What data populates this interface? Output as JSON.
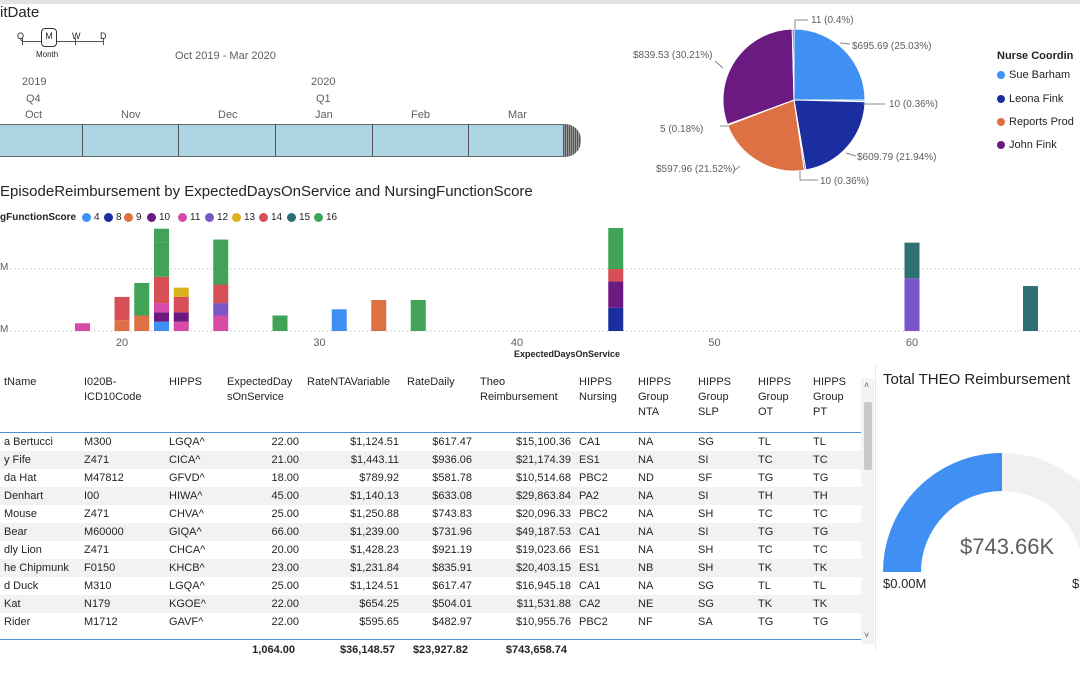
{
  "slicer": {
    "title": "itDate",
    "granularity": [
      "Q",
      "M",
      "W",
      "D"
    ],
    "granularity_selected": "M",
    "granularity_caption": "Month",
    "range_text": "Oct 2019 - Mar 2020",
    "year_2019": "2019",
    "quarter_2019": "Q4",
    "year_2020": "2020",
    "quarter_2020": "Q1",
    "months": [
      "Oct",
      "Nov",
      "Dec",
      "Jan",
      "Feb",
      "Mar"
    ]
  },
  "pie": {
    "legend_title": "Nurse Coordin",
    "legend": [
      {
        "name": "Sue Barham",
        "color": "#3f90f2"
      },
      {
        "name": "Leona Fink",
        "color": "#1a2ea0"
      },
      {
        "name": "Reports Prod",
        "color": "#dd7143"
      },
      {
        "name": "John Fink",
        "color": "#6a1a80"
      }
    ],
    "labels": {
      "l1": "11 (0.4%)",
      "l2": "$695.69 (25.03%)",
      "l3": "10 (0.36%)",
      "l4": "$609.79 (21.94%)",
      "l5": "10 (0.36%)",
      "l6": "$597.96 (21.52%)",
      "l7": "5 (0.18%)",
      "l8": "$839.53 (30.21%)"
    }
  },
  "bar_chart": {
    "title": "EpisodeReimbursement by ExpectedDaysOnService and NursingFunctionScore",
    "legend_title": "gFunctionScore",
    "legend": [
      {
        "name": "4",
        "color": "#3f90f2"
      },
      {
        "name": "8",
        "color": "#1a2ea0"
      },
      {
        "name": "9",
        "color": "#dd7143"
      },
      {
        "name": "10",
        "color": "#6a1a80"
      },
      {
        "name": "11",
        "color": "#d64aa8"
      },
      {
        "name": "12",
        "color": "#7a56c8"
      },
      {
        "name": "13",
        "color": "#d9b21e"
      },
      {
        "name": "14",
        "color": "#d64f57"
      },
      {
        "name": "15",
        "color": "#2e6f72"
      },
      {
        "name": "16",
        "color": "#41a356"
      }
    ],
    "y_label_upper": "M",
    "y_label_lower": "M",
    "xlabel": "ExpectedDaysOnService",
    "x_ticks": [
      "20",
      "30",
      "40",
      "50",
      "60"
    ]
  },
  "chart_data": {
    "type": "bar",
    "title": "EpisodeReimbursement by ExpectedDaysOnService and NursingFunctionScore",
    "xlabel": "ExpectedDaysOnService",
    "ylabel": "",
    "stacked": true,
    "xlim": [
      15,
      68
    ],
    "ylim": [
      0,
      70000
    ],
    "grid": true,
    "legend_position": "top-left",
    "series_colors": {
      "4": "#3f90f2",
      "8": "#1a2ea0",
      "9": "#dd7143",
      "10": "#6a1a80",
      "11": "#d64aa8",
      "12": "#7a56c8",
      "13": "#d9b21e",
      "14": "#d64f57",
      "15": "#2e6f72",
      "16": "#41a356"
    },
    "stacks": [
      {
        "x": 18,
        "segments": [
          {
            "series": "11",
            "value": 5000
          }
        ]
      },
      {
        "x": 20,
        "segments": [
          {
            "series": "9",
            "value": 7000
          },
          {
            "series": "14",
            "value": 15000
          }
        ]
      },
      {
        "x": 21,
        "segments": [
          {
            "series": "9",
            "value": 10000
          },
          {
            "series": "16",
            "value": 21000
          }
        ]
      },
      {
        "x": 22,
        "segments": [
          {
            "series": "4",
            "value": 6000
          },
          {
            "series": "10",
            "value": 6000
          },
          {
            "series": "11",
            "value": 6000
          },
          {
            "series": "14",
            "value": 17000
          },
          {
            "series": "16",
            "value": 22000
          },
          {
            "series": "16",
            "value": 9000
          }
        ]
      },
      {
        "x": 23,
        "segments": [
          {
            "series": "11",
            "value": 6000
          },
          {
            "series": "10",
            "value": 6000
          },
          {
            "series": "14",
            "value": 10000
          },
          {
            "series": "13",
            "value": 6000
          }
        ]
      },
      {
        "x": 25,
        "segments": [
          {
            "series": "11",
            "value": 10000
          },
          {
            "series": "12",
            "value": 8000
          },
          {
            "series": "14",
            "value": 12000
          },
          {
            "series": "16",
            "value": 29000
          }
        ]
      },
      {
        "x": 28,
        "segments": [
          {
            "series": "16",
            "value": 10000
          }
        ]
      },
      {
        "x": 31,
        "segments": [
          {
            "series": "4",
            "value": 14000
          }
        ]
      },
      {
        "x": 33,
        "segments": [
          {
            "series": "9",
            "value": 20000
          }
        ]
      },
      {
        "x": 35,
        "segments": [
          {
            "series": "16",
            "value": 20000
          }
        ]
      },
      {
        "x": 45,
        "segments": [
          {
            "series": "8",
            "value": 15000
          },
          {
            "series": "10",
            "value": 17000
          },
          {
            "series": "14",
            "value": 8000
          },
          {
            "series": "16",
            "value": 32000
          }
        ]
      },
      {
        "x": 60,
        "segments": [
          {
            "series": "12",
            "value": 34000
          },
          {
            "series": "15",
            "value": 23000
          }
        ]
      },
      {
        "x": 66,
        "segments": [
          {
            "series": "15",
            "value": 29000
          }
        ]
      }
    ]
  },
  "table": {
    "headers": [
      "tName",
      "I020B-ICD10Code",
      "HIPPS",
      "ExpectedDaysOnService",
      "RateNTAVariable",
      "RateDaily",
      "Theo Reimbursement",
      "HIPPS Nursing",
      "HIPPS Group NTA",
      "HIPPS Group SLP",
      "HIPPS Group OT",
      "HIPPS Group PT"
    ],
    "header_display": [
      "tName",
      "I020B-\nICD10Code",
      "HIPPS",
      "ExpectedDay\nsOnService",
      "RateNTAVariable",
      "RateDaily",
      "Theo\nReimbursement",
      "HIPPS\nNursing",
      "HIPPS\nGroup\nNTA",
      "HIPPS\nGroup\nSLP",
      "HIPPS\nGroup\nOT",
      "HIPPS\nGroup\nPT"
    ],
    "rows": [
      [
        "a Bertucci",
        "M300",
        "LGQA^",
        "22.00",
        "$1,124.51",
        "$617.47",
        "$15,100.36",
        "CA1",
        "NA",
        "SG",
        "TL",
        "TL"
      ],
      [
        "y Fife",
        "Z471",
        "CICA^",
        "21.00",
        "$1,443.11",
        "$936.06",
        "$21,174.39",
        "ES1",
        "NA",
        "SI",
        "TC",
        "TC"
      ],
      [
        "da Hat",
        "M47812",
        "GFVD^",
        "18.00",
        "$789.92",
        "$581.78",
        "$10,514.68",
        "PBC2",
        "ND",
        "SF",
        "TG",
        "TG"
      ],
      [
        "Denhart",
        "I00",
        "HIWA^",
        "45.00",
        "$1,140.13",
        "$633.08",
        "$29,863.84",
        "PA2",
        "NA",
        "SI",
        "TH",
        "TH"
      ],
      [
        "Mouse",
        "Z471",
        "CHVA^",
        "25.00",
        "$1,250.88",
        "$743.83",
        "$20,096.33",
        "PBC2",
        "NA",
        "SH",
        "TC",
        "TC"
      ],
      [
        "Bear",
        "M60000",
        "GIQA^",
        "66.00",
        "$1,239.00",
        "$731.96",
        "$49,187.53",
        "CA1",
        "NA",
        "SI",
        "TG",
        "TG"
      ],
      [
        "dly Lion",
        "Z471",
        "CHCA^",
        "20.00",
        "$1,428.23",
        "$921.19",
        "$19,023.66",
        "ES1",
        "NA",
        "SH",
        "TC",
        "TC"
      ],
      [
        "he Chipmunk",
        "F0150",
        "KHCB^",
        "23.00",
        "$1,231.84",
        "$835.91",
        "$20,403.15",
        "ES1",
        "NB",
        "SH",
        "TK",
        "TK"
      ],
      [
        "d Duck",
        "M310",
        "LGQA^",
        "25.00",
        "$1,124.51",
        "$617.47",
        "$16,945.18",
        "CA1",
        "NA",
        "SG",
        "TL",
        "TL"
      ],
      [
        "Kat",
        "N179",
        "KGOE^",
        "22.00",
        "$654.25",
        "$504.01",
        "$11,531.88",
        "CA2",
        "NE",
        "SG",
        "TK",
        "TK"
      ],
      [
        "Rider",
        "M1712",
        "GAVF^",
        "22.00",
        "$595.65",
        "$482.97",
        "$10,955.76",
        "PBC2",
        "NF",
        "SA",
        "TG",
        "TG"
      ]
    ],
    "totals": {
      "expected_days": "1,064.00",
      "rate_nta": "$36,148.57",
      "rate_daily": "$23,927.82",
      "theo": "$743,658.74"
    }
  },
  "gauge": {
    "title": "Total THEO Reimbursement",
    "value_label": "$743.66K",
    "min_label": "$0.00M",
    "max_label": "$",
    "value_fraction": 0.5,
    "fill_color": "#3f90f2",
    "track_color": "#f0f0f0"
  }
}
